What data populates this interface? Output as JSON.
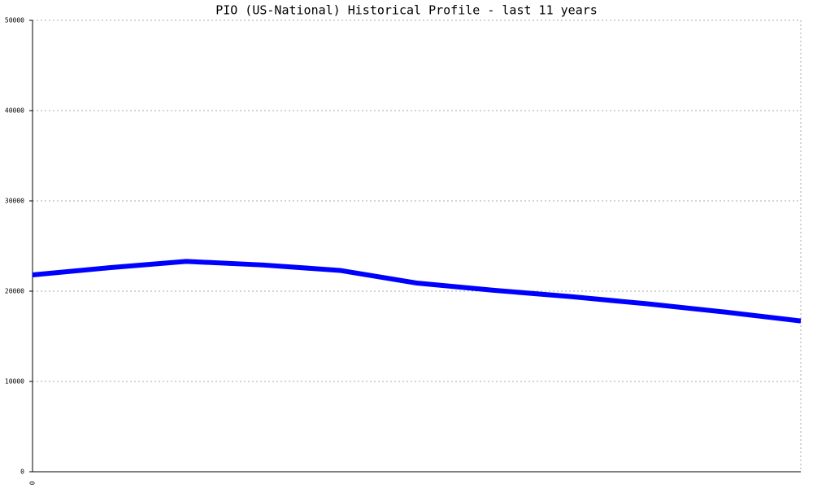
{
  "chart_data": {
    "type": "line",
    "title": "PIO (US-National) Historical Profile - last 11 years",
    "categories": [
      "0",
      null,
      null,
      null,
      null,
      null,
      null,
      null,
      null,
      null,
      null
    ],
    "series": [
      {
        "color": "#0000ff",
        "values": [
          21800,
          22600,
          23300,
          22900,
          22300,
          20900,
          20100,
          19400,
          18600,
          17700,
          16700
        ]
      }
    ],
    "ylim": [
      0,
      50000
    ],
    "yticks": [
      0,
      10000,
      20000,
      30000,
      40000,
      50000
    ],
    "grid": true
  }
}
